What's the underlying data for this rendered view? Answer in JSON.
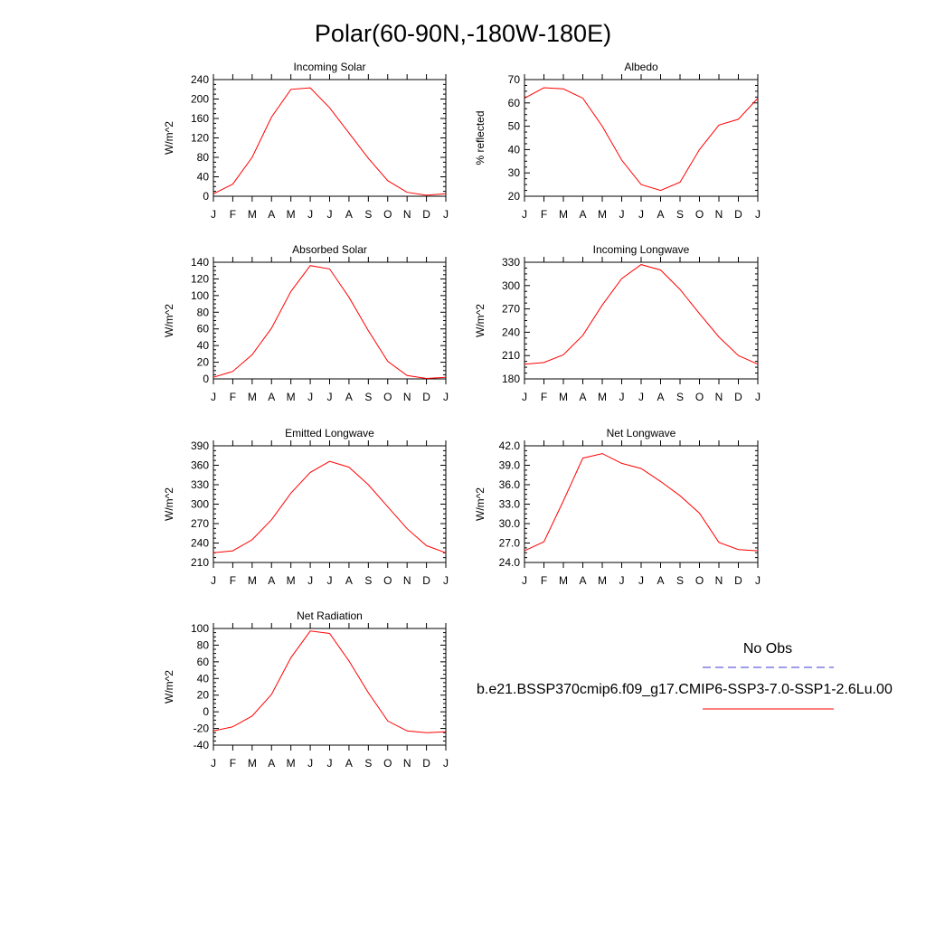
{
  "page": {
    "title": "Polar(60-90N,-180W-180E)"
  },
  "legend": {
    "obs_label": "No Obs",
    "obs_color": "#3b3bd6",
    "model_label": "b.e21.BSSP370cmip6.f09_g17.CMIP6-SSP3-7.0-SSP1-2.6Lu.00",
    "model_color": "#ff0000"
  },
  "chart_data": [
    {
      "type": "line",
      "title": "Incoming Solar",
      "ylabel": "W/m^2",
      "categories": [
        "J",
        "F",
        "M",
        "A",
        "M",
        "J",
        "J",
        "A",
        "S",
        "O",
        "N",
        "D",
        "J"
      ],
      "ylim": [
        0,
        240
      ],
      "yticks": [
        "0",
        "40",
        "80",
        "120",
        "160",
        "200",
        "240"
      ],
      "series": [
        {
          "values": [
            5,
            25,
            80,
            163,
            220,
            223,
            182,
            130,
            78,
            32,
            8,
            2,
            5
          ]
        }
      ]
    },
    {
      "type": "line",
      "title": "Albedo",
      "ylabel": "% reflected",
      "categories": [
        "J",
        "F",
        "M",
        "A",
        "M",
        "J",
        "J",
        "A",
        "S",
        "O",
        "N",
        "D",
        "J"
      ],
      "ylim": [
        20,
        70
      ],
      "yticks": [
        "20",
        "30",
        "40",
        "50",
        "60",
        "70"
      ],
      "series": [
        {
          "values": [
            62,
            66.5,
            66,
            62,
            50,
            35.5,
            25,
            22.5,
            26,
            40,
            50.5,
            53,
            62
          ]
        }
      ]
    },
    {
      "type": "line",
      "title": "Absorbed Solar",
      "ylabel": "W/m^2",
      "categories": [
        "J",
        "F",
        "M",
        "A",
        "M",
        "J",
        "J",
        "A",
        "S",
        "O",
        "N",
        "D",
        "J"
      ],
      "ylim": [
        0,
        140
      ],
      "yticks": [
        "0",
        "20",
        "40",
        "60",
        "80",
        "100",
        "120",
        "140"
      ],
      "series": [
        {
          "values": [
            2,
            9,
            29,
            61,
            105,
            136,
            132,
            98,
            58,
            21,
            4,
            0.5,
            2
          ]
        }
      ]
    },
    {
      "type": "line",
      "title": "Incoming Longwave",
      "ylabel": "W/m^2",
      "categories": [
        "J",
        "F",
        "M",
        "A",
        "M",
        "J",
        "J",
        "A",
        "S",
        "O",
        "N",
        "D",
        "J"
      ],
      "ylim": [
        180,
        330
      ],
      "yticks": [
        "180",
        "210",
        "240",
        "270",
        "300",
        "330"
      ],
      "series": [
        {
          "values": [
            199,
            201,
            211,
            236,
            275,
            309,
            327,
            320,
            295,
            264,
            234,
            210,
            199
          ]
        }
      ]
    },
    {
      "type": "line",
      "title": "Emitted Longwave",
      "ylabel": "W/m^2",
      "categories": [
        "J",
        "F",
        "M",
        "A",
        "M",
        "J",
        "J",
        "A",
        "S",
        "O",
        "N",
        "D",
        "J"
      ],
      "ylim": [
        210,
        390
      ],
      "yticks": [
        "210",
        "240",
        "270",
        "300",
        "330",
        "360",
        "390"
      ],
      "series": [
        {
          "values": [
            225,
            228,
            245,
            276,
            317,
            349,
            366,
            357,
            330,
            296,
            262,
            236,
            225
          ]
        }
      ]
    },
    {
      "type": "line",
      "title": "Net Longwave",
      "ylabel": "W/m^2",
      "categories": [
        "J",
        "F",
        "M",
        "A",
        "M",
        "J",
        "J",
        "A",
        "S",
        "O",
        "N",
        "D",
        "J"
      ],
      "ylim": [
        24,
        42
      ],
      "yticks": [
        "24.0",
        "27.0",
        "30.0",
        "33.0",
        "36.0",
        "39.0",
        "42.0"
      ],
      "series": [
        {
          "values": [
            25.8,
            27.2,
            33.5,
            40.1,
            40.8,
            39.3,
            38.5,
            36.5,
            34.3,
            31.6,
            27.1,
            26,
            25.8
          ]
        }
      ]
    },
    {
      "type": "line",
      "title": "Net Radiation",
      "ylabel": "W/m^2",
      "categories": [
        "J",
        "F",
        "M",
        "A",
        "M",
        "J",
        "J",
        "A",
        "S",
        "O",
        "N",
        "D",
        "J"
      ],
      "ylim": [
        -40,
        100
      ],
      "yticks": [
        "-40",
        "-20",
        "0",
        "20",
        "40",
        "60",
        "80",
        "100"
      ],
      "series": [
        {
          "values": [
            -23,
            -18,
            -5,
            21,
            65,
            97,
            94,
            61,
            23,
            -11,
            -23,
            -25,
            -24
          ]
        }
      ]
    }
  ]
}
